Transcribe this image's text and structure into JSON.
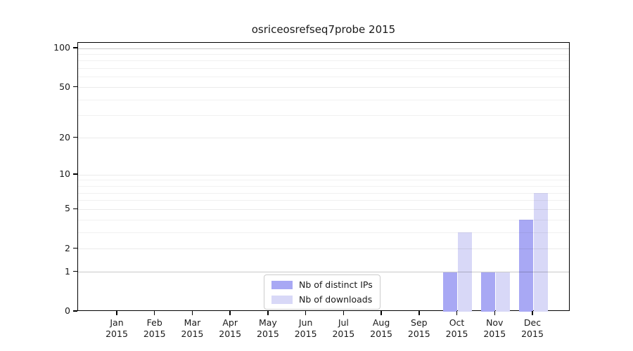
{
  "chart_data": {
    "type": "bar",
    "title": "osriceosrefseq7probe 2015",
    "year": "2015",
    "months": [
      "Jan",
      "Feb",
      "Mar",
      "Apr",
      "May",
      "Jun",
      "Jul",
      "Aug",
      "Sep",
      "Oct",
      "Nov",
      "Dec"
    ],
    "categories": [
      "Jan 2015",
      "Feb 2015",
      "Mar 2015",
      "Apr 2015",
      "May 2015",
      "Jun 2015",
      "Jul 2015",
      "Aug 2015",
      "Sep 2015",
      "Oct 2015",
      "Nov 2015",
      "Dec 2015"
    ],
    "series": [
      {
        "name": "Nb of distinct IPs",
        "key": "distinct-ips",
        "color": "#a8a8f4",
        "values": [
          0,
          0,
          0,
          0,
          0,
          0,
          0,
          0,
          0,
          1,
          1,
          4
        ]
      },
      {
        "name": "Nb of downloads",
        "key": "downloads",
        "color": "#d8d8f7",
        "values": [
          0,
          0,
          0,
          0,
          0,
          0,
          0,
          0,
          0,
          3,
          1,
          7
        ]
      }
    ],
    "yscale": "log1p",
    "ylim": [
      0,
      110
    ],
    "yticks": [
      0,
      1,
      2,
      5,
      10,
      20,
      50,
      100
    ],
    "ytick_labels": [
      "0",
      "1",
      "2",
      "5",
      "10",
      "20",
      "50",
      "100"
    ],
    "major_gridlines": [
      2,
      5,
      10,
      20,
      50
    ],
    "minor_gridlines": [
      3,
      4,
      6,
      7,
      8,
      9,
      30,
      40,
      60,
      70,
      80,
      90
    ],
    "emphasized_gridlines": [
      1,
      100
    ],
    "grid": true,
    "legend_position": "lower center",
    "colors": {
      "axis": "#000000",
      "background": "#ffffff",
      "legend_border": "#cccccc"
    }
  }
}
